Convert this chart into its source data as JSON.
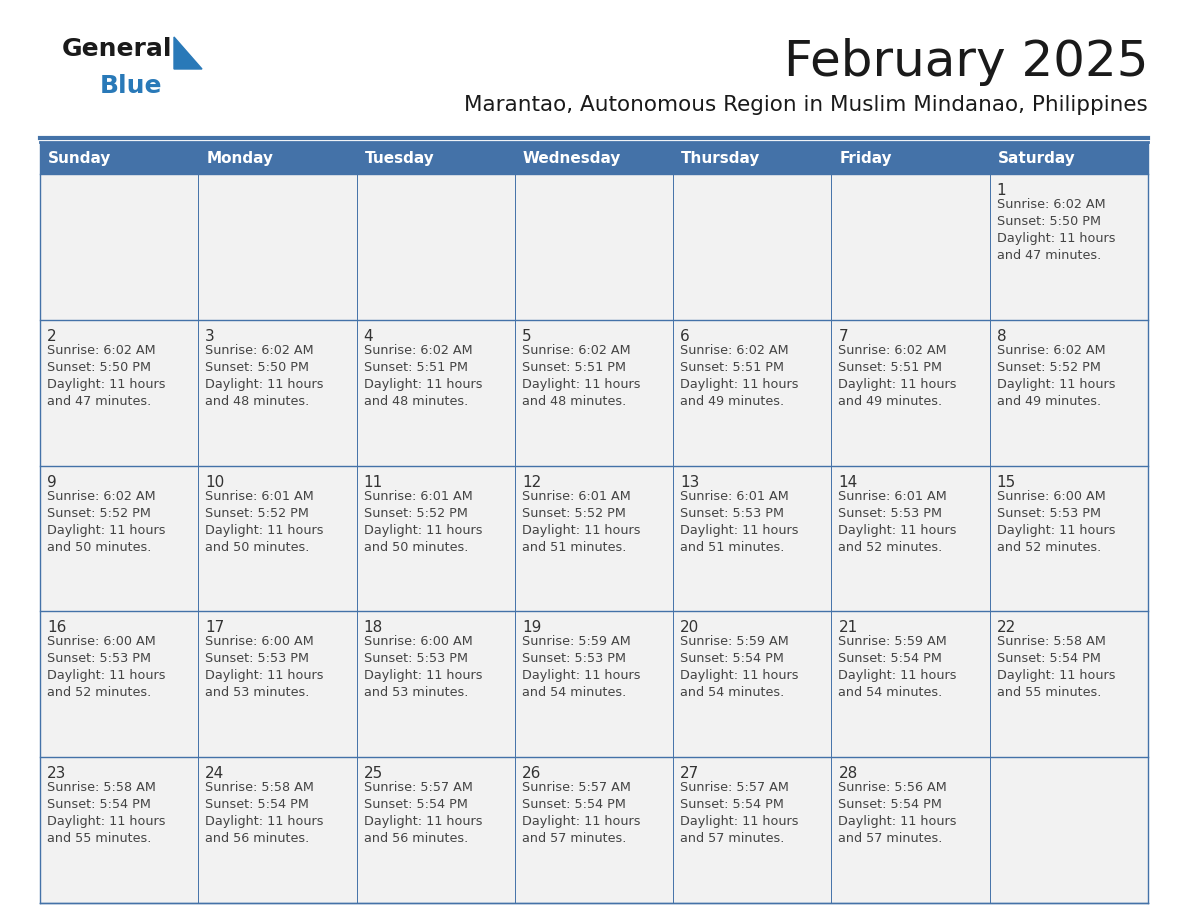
{
  "title": "February 2025",
  "subtitle": "Marantao, Autonomous Region in Muslim Mindanao, Philippines",
  "days_of_week": [
    "Sunday",
    "Monday",
    "Tuesday",
    "Wednesday",
    "Thursday",
    "Friday",
    "Saturday"
  ],
  "header_bg": "#4472a8",
  "header_text": "#ffffff",
  "cell_bg": "#f2f2f2",
  "border_color": "#4472a8",
  "line_color": "#4472a8",
  "day_num_color": "#333333",
  "info_text_color": "#444444",
  "title_color": "#1a1a1a",
  "subtitle_color": "#1a1a1a",
  "logo_black": "#1a1a1a",
  "logo_blue": "#2979b8",
  "calendar_data": [
    {
      "day": 1,
      "col": 6,
      "row": 0,
      "sunrise": "6:02 AM",
      "sunset": "5:50 PM",
      "daylight": "11 hours and 47 minutes."
    },
    {
      "day": 2,
      "col": 0,
      "row": 1,
      "sunrise": "6:02 AM",
      "sunset": "5:50 PM",
      "daylight": "11 hours and 47 minutes."
    },
    {
      "day": 3,
      "col": 1,
      "row": 1,
      "sunrise": "6:02 AM",
      "sunset": "5:50 PM",
      "daylight": "11 hours and 48 minutes."
    },
    {
      "day": 4,
      "col": 2,
      "row": 1,
      "sunrise": "6:02 AM",
      "sunset": "5:51 PM",
      "daylight": "11 hours and 48 minutes."
    },
    {
      "day": 5,
      "col": 3,
      "row": 1,
      "sunrise": "6:02 AM",
      "sunset": "5:51 PM",
      "daylight": "11 hours and 48 minutes."
    },
    {
      "day": 6,
      "col": 4,
      "row": 1,
      "sunrise": "6:02 AM",
      "sunset": "5:51 PM",
      "daylight": "11 hours and 49 minutes."
    },
    {
      "day": 7,
      "col": 5,
      "row": 1,
      "sunrise": "6:02 AM",
      "sunset": "5:51 PM",
      "daylight": "11 hours and 49 minutes."
    },
    {
      "day": 8,
      "col": 6,
      "row": 1,
      "sunrise": "6:02 AM",
      "sunset": "5:52 PM",
      "daylight": "11 hours and 49 minutes."
    },
    {
      "day": 9,
      "col": 0,
      "row": 2,
      "sunrise": "6:02 AM",
      "sunset": "5:52 PM",
      "daylight": "11 hours and 50 minutes."
    },
    {
      "day": 10,
      "col": 1,
      "row": 2,
      "sunrise": "6:01 AM",
      "sunset": "5:52 PM",
      "daylight": "11 hours and 50 minutes."
    },
    {
      "day": 11,
      "col": 2,
      "row": 2,
      "sunrise": "6:01 AM",
      "sunset": "5:52 PM",
      "daylight": "11 hours and 50 minutes."
    },
    {
      "day": 12,
      "col": 3,
      "row": 2,
      "sunrise": "6:01 AM",
      "sunset": "5:52 PM",
      "daylight": "11 hours and 51 minutes."
    },
    {
      "day": 13,
      "col": 4,
      "row": 2,
      "sunrise": "6:01 AM",
      "sunset": "5:53 PM",
      "daylight": "11 hours and 51 minutes."
    },
    {
      "day": 14,
      "col": 5,
      "row": 2,
      "sunrise": "6:01 AM",
      "sunset": "5:53 PM",
      "daylight": "11 hours and 52 minutes."
    },
    {
      "day": 15,
      "col": 6,
      "row": 2,
      "sunrise": "6:00 AM",
      "sunset": "5:53 PM",
      "daylight": "11 hours and 52 minutes."
    },
    {
      "day": 16,
      "col": 0,
      "row": 3,
      "sunrise": "6:00 AM",
      "sunset": "5:53 PM",
      "daylight": "11 hours and 52 minutes."
    },
    {
      "day": 17,
      "col": 1,
      "row": 3,
      "sunrise": "6:00 AM",
      "sunset": "5:53 PM",
      "daylight": "11 hours and 53 minutes."
    },
    {
      "day": 18,
      "col": 2,
      "row": 3,
      "sunrise": "6:00 AM",
      "sunset": "5:53 PM",
      "daylight": "11 hours and 53 minutes."
    },
    {
      "day": 19,
      "col": 3,
      "row": 3,
      "sunrise": "5:59 AM",
      "sunset": "5:53 PM",
      "daylight": "11 hours and 54 minutes."
    },
    {
      "day": 20,
      "col": 4,
      "row": 3,
      "sunrise": "5:59 AM",
      "sunset": "5:54 PM",
      "daylight": "11 hours and 54 minutes."
    },
    {
      "day": 21,
      "col": 5,
      "row": 3,
      "sunrise": "5:59 AM",
      "sunset": "5:54 PM",
      "daylight": "11 hours and 54 minutes."
    },
    {
      "day": 22,
      "col": 6,
      "row": 3,
      "sunrise": "5:58 AM",
      "sunset": "5:54 PM",
      "daylight": "11 hours and 55 minutes."
    },
    {
      "day": 23,
      "col": 0,
      "row": 4,
      "sunrise": "5:58 AM",
      "sunset": "5:54 PM",
      "daylight": "11 hours and 55 minutes."
    },
    {
      "day": 24,
      "col": 1,
      "row": 4,
      "sunrise": "5:58 AM",
      "sunset": "5:54 PM",
      "daylight": "11 hours and 56 minutes."
    },
    {
      "day": 25,
      "col": 2,
      "row": 4,
      "sunrise": "5:57 AM",
      "sunset": "5:54 PM",
      "daylight": "11 hours and 56 minutes."
    },
    {
      "day": 26,
      "col": 3,
      "row": 4,
      "sunrise": "5:57 AM",
      "sunset": "5:54 PM",
      "daylight": "11 hours and 57 minutes."
    },
    {
      "day": 27,
      "col": 4,
      "row": 4,
      "sunrise": "5:57 AM",
      "sunset": "5:54 PM",
      "daylight": "11 hours and 57 minutes."
    },
    {
      "day": 28,
      "col": 5,
      "row": 4,
      "sunrise": "5:56 AM",
      "sunset": "5:54 PM",
      "daylight": "11 hours and 57 minutes."
    }
  ]
}
